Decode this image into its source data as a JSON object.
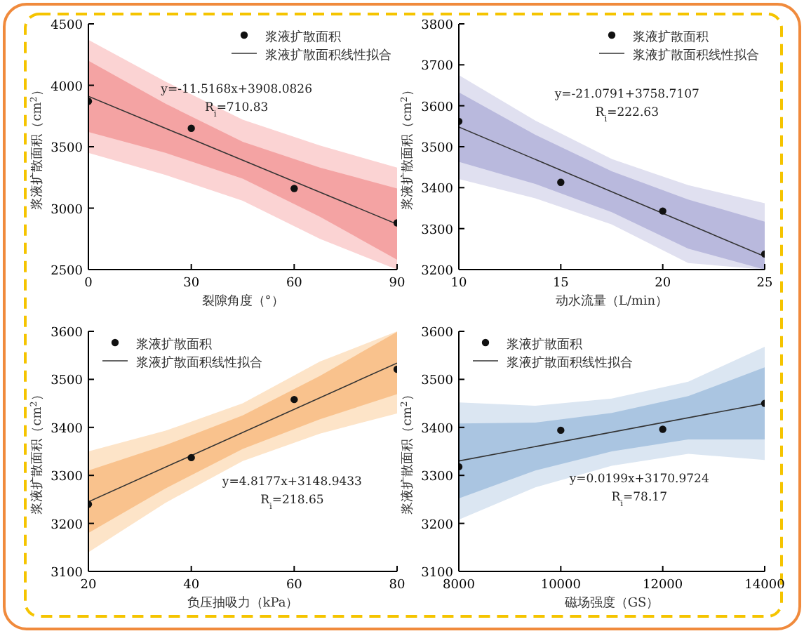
{
  "chart_data": [
    {
      "type": "scatter",
      "xlabel": "裂隙角度（°）",
      "ylabel": "浆液扩散面积（cm$^{2}$）",
      "xlim": [
        0,
        90
      ],
      "ylim": [
        2500,
        4500
      ],
      "xticks": [
        0,
        30,
        60,
        90
      ],
      "yticks": [
        2500,
        3000,
        3500,
        4000,
        4500
      ],
      "legend": "top right",
      "annotations": [
        "y=-11.5168x+3908.0826",
        "R$_{i}$=710.83"
      ],
      "series": [
        {
          "name": "浆液扩散面积",
          "type": "scatter",
          "marker": "circle",
          "color": "#111111",
          "x": [
            0,
            30,
            60,
            90
          ],
          "values": [
            3870,
            3650,
            3160,
            2880
          ]
        },
        {
          "name": "浆液扩散面积线性拟合",
          "type": "line",
          "color": "#333333",
          "x": [
            0,
            90
          ],
          "values": [
            3910,
            2870
          ]
        },
        {
          "type": "line",
          "color": "#f4a3a3",
          "x": [
            0,
            22.5,
            45,
            67.5,
            90
          ],
          "values": [
            null,
            null,
            null,
            null,
            null
          ],
          "lower": [
            3620,
            3450,
            3240,
            2930,
            2580
          ],
          "upper": [
            4200,
            3850,
            3540,
            3330,
            3160
          ]
        },
        {
          "type": "line",
          "color": "#fbd3d3",
          "x": [
            0,
            22.5,
            45,
            67.5,
            90
          ],
          "values": [
            null,
            null,
            null,
            null,
            null
          ],
          "lower": [
            3450,
            3270,
            3060,
            2750,
            2500
          ],
          "upper": [
            4370,
            4030,
            3720,
            3510,
            3330
          ]
        }
      ]
    },
    {
      "type": "scatter",
      "xlabel": "动水流量（L/min）",
      "ylabel": "浆液扩散面积（cm$^{2}$）",
      "xlim": [
        10,
        25
      ],
      "ylim": [
        3200,
        3800
      ],
      "xticks": [
        10,
        15,
        20,
        25
      ],
      "yticks": [
        3200,
        3300,
        3400,
        3500,
        3600,
        3700,
        3800
      ],
      "legend": "top right",
      "annotations": [
        "y=-21.0791+3758.7107",
        "R$_{i}$=222.63"
      ],
      "series": [
        {
          "name": "浆液扩散面积",
          "type": "scatter",
          "marker": "circle",
          "color": "#111111",
          "x": [
            10,
            15,
            20,
            25
          ],
          "values": [
            3562,
            3413,
            3343,
            3238
          ]
        },
        {
          "name": "浆液扩散面积线性拟合",
          "type": "line",
          "color": "#333333",
          "x": [
            10,
            25
          ],
          "values": [
            3548,
            3232
          ]
        },
        {
          "type": "line",
          "color": "#b9b9dd",
          "x": [
            10,
            13.75,
            17.5,
            21.25,
            25
          ],
          "values": [
            null,
            null,
            null,
            null,
            null
          ],
          "lower": [
            3463,
            3409,
            3340,
            3251,
            3200
          ],
          "upper": [
            3633,
            3529,
            3440,
            3371,
            3317
          ]
        },
        {
          "type": "line",
          "color": "#e0e0f0",
          "x": [
            10,
            13.75,
            17.5,
            21.25,
            25
          ],
          "values": [
            null,
            null,
            null,
            null,
            null
          ],
          "lower": [
            3421,
            3374,
            3310,
            3216,
            3200
          ],
          "upper": [
            3675,
            3564,
            3470,
            3406,
            3362
          ]
        }
      ]
    },
    {
      "type": "scatter",
      "xlabel": "负压抽吸力（kPa）",
      "ylabel": "浆液扩散面积（cm$^{2}$）",
      "xlim": [
        20,
        80
      ],
      "ylim": [
        3100,
        3600
      ],
      "xticks": [
        20,
        40,
        60,
        80
      ],
      "yticks": [
        3100,
        3200,
        3300,
        3400,
        3500,
        3600
      ],
      "legend": "top left",
      "annotations": [
        "y=4.8177x+3148.9433",
        "R$_{i}$=218.65"
      ],
      "series": [
        {
          "name": "浆液扩散面积",
          "type": "scatter",
          "marker": "circle",
          "color": "#111111",
          "x": [
            20,
            40,
            60,
            80
          ],
          "values": [
            3240,
            3337,
            3458,
            3521
          ]
        },
        {
          "name": "浆液扩散面积线性拟合",
          "type": "line",
          "color": "#333333",
          "x": [
            20,
            80
          ],
          "values": [
            3245,
            3534
          ]
        },
        {
          "type": "line",
          "color": "#f9c28d",
          "x": [
            20,
            35,
            50,
            65,
            80
          ],
          "values": [
            null,
            null,
            null,
            null,
            null
          ],
          "lower": [
            3180,
            3273,
            3355,
            3417,
            3469
          ],
          "upper": [
            3310,
            3363,
            3425,
            3507,
            3599
          ]
        },
        {
          "type": "line",
          "color": "#fde4c8",
          "x": [
            20,
            35,
            50,
            65,
            80
          ],
          "values": [
            null,
            null,
            null,
            null,
            null
          ],
          "lower": [
            3140,
            3243,
            3330,
            3387,
            3429
          ],
          "upper": [
            3350,
            3393,
            3450,
            3537,
            3600
          ]
        }
      ]
    },
    {
      "type": "scatter",
      "xlabel": "磁场强度（GS）",
      "ylabel": "浆液扩散面积（cm$^{2}$）",
      "xlim": [
        8000,
        14000
      ],
      "ylim": [
        3100,
        3600
      ],
      "xticks": [
        8000,
        10000,
        12000,
        14000
      ],
      "yticks": [
        3100,
        3200,
        3300,
        3400,
        3500,
        3600
      ],
      "legend": "top left",
      "annotations": [
        "y=0.0199x+3170.9724",
        "R$_{i}$=78.17"
      ],
      "series": [
        {
          "name": "浆液扩散面积",
          "type": "scatter",
          "marker": "circle",
          "color": "#111111",
          "x": [
            8000,
            10000,
            12000,
            14000
          ],
          "values": [
            3318,
            3394,
            3396,
            3450
          ]
        },
        {
          "name": "浆液扩散面积线性拟合",
          "type": "line",
          "color": "#333333",
          "x": [
            8000,
            14000
          ],
          "values": [
            3330,
            3450
          ]
        },
        {
          "type": "line",
          "color": "#aac5e1",
          "x": [
            8000,
            9500,
            11000,
            12500,
            14000
          ],
          "values": [
            null,
            null,
            null,
            null,
            null
          ],
          "lower": [
            3252,
            3310,
            3350,
            3375,
            3375
          ],
          "upper": [
            3408,
            3410,
            3430,
            3465,
            3525
          ]
        },
        {
          "type": "line",
          "color": "#dbe6f2",
          "x": [
            8000,
            9500,
            11000,
            12500,
            14000
          ],
          "values": [
            null,
            null,
            null,
            null,
            null
          ],
          "lower": [
            3208,
            3275,
            3320,
            3345,
            3332
          ],
          "upper": [
            3452,
            3445,
            3460,
            3495,
            3568
          ]
        }
      ]
    }
  ]
}
